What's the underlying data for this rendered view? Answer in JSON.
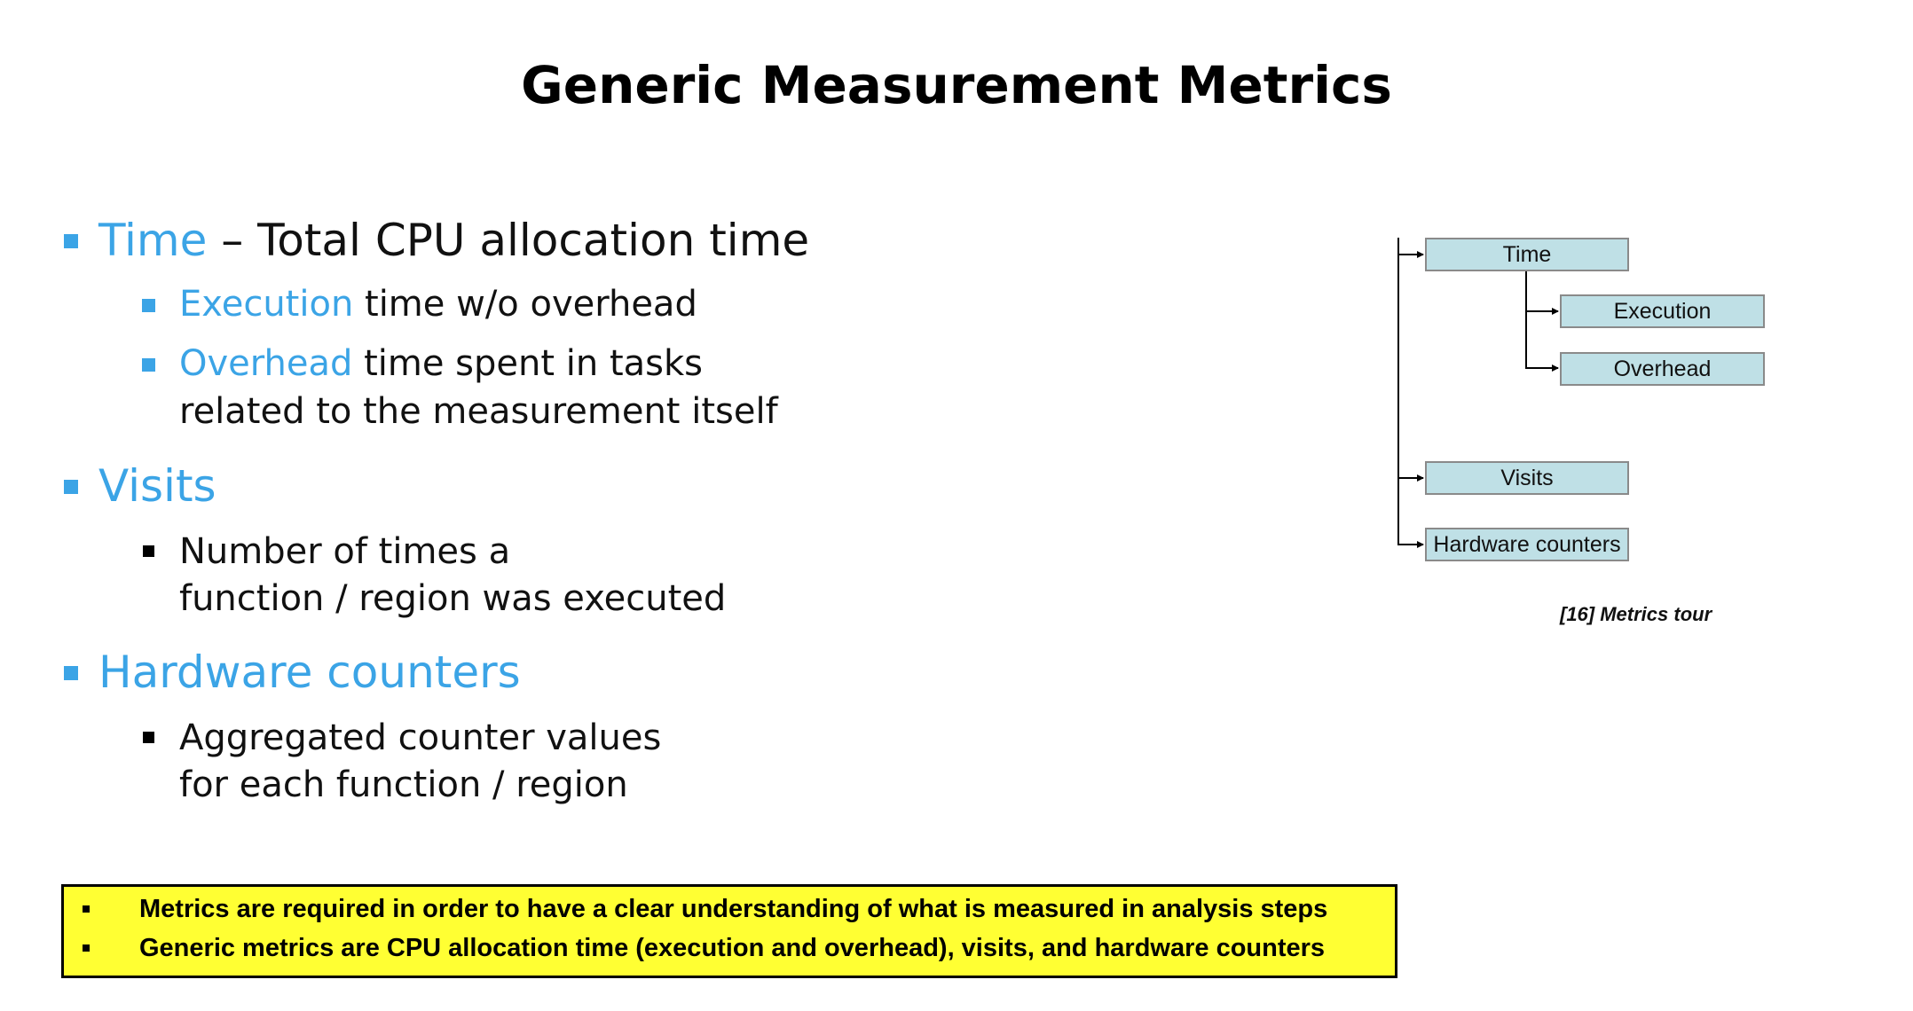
{
  "title": "Generic Measurement Metrics",
  "bullets": {
    "time": {
      "term": "Time",
      "rest": " – Total CPU allocation time"
    },
    "execution": {
      "term": "Execution",
      "rest": " time w/o overhead"
    },
    "overhead": {
      "term": "Overhead",
      "rest": " time spent in tasks",
      "line2": "related to the measurement itself"
    },
    "visits": {
      "term": "Visits",
      "sub_line1": "Number of times a",
      "sub_line2": "function / region was executed"
    },
    "hardware": {
      "term": "Hardware counters",
      "sub_line1": "Aggregated counter values",
      "sub_line2": "for each function / region"
    }
  },
  "diagram": {
    "boxes": {
      "time": "Time",
      "execution": "Execution",
      "overhead": "Overhead",
      "visits": "Visits",
      "hardware": "Hardware counters"
    },
    "caption": "[16] Metrics tour"
  },
  "summary": [
    "Metrics are required in order to have a clear understanding of what is measured in analysis steps",
    "Generic metrics are CPU allocation time (execution and overhead), visits, and hardware counters"
  ],
  "colors": {
    "accent": "#3ba4e6",
    "diagram_box": "#bfe0e6",
    "summary_background": "#ffff33"
  }
}
